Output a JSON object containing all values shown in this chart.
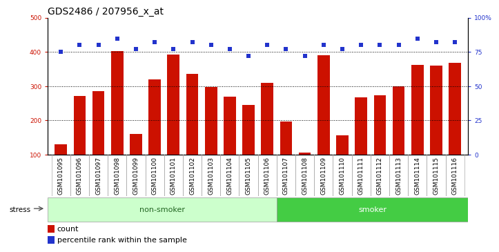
{
  "title": "GDS2486 / 207956_x_at",
  "samples": [
    "GSM101095",
    "GSM101096",
    "GSM101097",
    "GSM101098",
    "GSM101099",
    "GSM101100",
    "GSM101101",
    "GSM101102",
    "GSM101103",
    "GSM101104",
    "GSM101105",
    "GSM101106",
    "GSM101107",
    "GSM101108",
    "GSM101109",
    "GSM101110",
    "GSM101111",
    "GSM101112",
    "GSM101113",
    "GSM101114",
    "GSM101115",
    "GSM101116"
  ],
  "counts": [
    130,
    272,
    285,
    403,
    160,
    320,
    393,
    337,
    298,
    270,
    245,
    310,
    197,
    107,
    390,
    157,
    268,
    273,
    300,
    362,
    360,
    368
  ],
  "percentiles": [
    75,
    80,
    80,
    85,
    77,
    82,
    77,
    82,
    80,
    77,
    72,
    80,
    77,
    72,
    80,
    77,
    80,
    80,
    80,
    85,
    82,
    82
  ],
  "group_labels": [
    "non-smoker",
    "smoker"
  ],
  "non_smoker_count": 12,
  "smoker_count": 10,
  "bar_color": "#cc1100",
  "dot_color": "#2233cc",
  "nonsmoker_fill": "#ccffcc",
  "smoker_fill": "#44cc44",
  "group_label_color": "#226622",
  "stress_label": "stress",
  "left_ylim": [
    100,
    500
  ],
  "right_ylim": [
    0,
    100
  ],
  "left_yticks": [
    100,
    200,
    300,
    400,
    500
  ],
  "right_yticks": [
    0,
    25,
    50,
    75,
    100
  ],
  "right_yticklabels": [
    "0",
    "25",
    "50",
    "75",
    "100%"
  ],
  "grid_values": [
    200,
    300,
    400
  ],
  "title_fontsize": 10,
  "tick_fontsize": 6.5,
  "legend_fontsize": 8,
  "bar_width": 0.65,
  "bar_bottom": 100
}
